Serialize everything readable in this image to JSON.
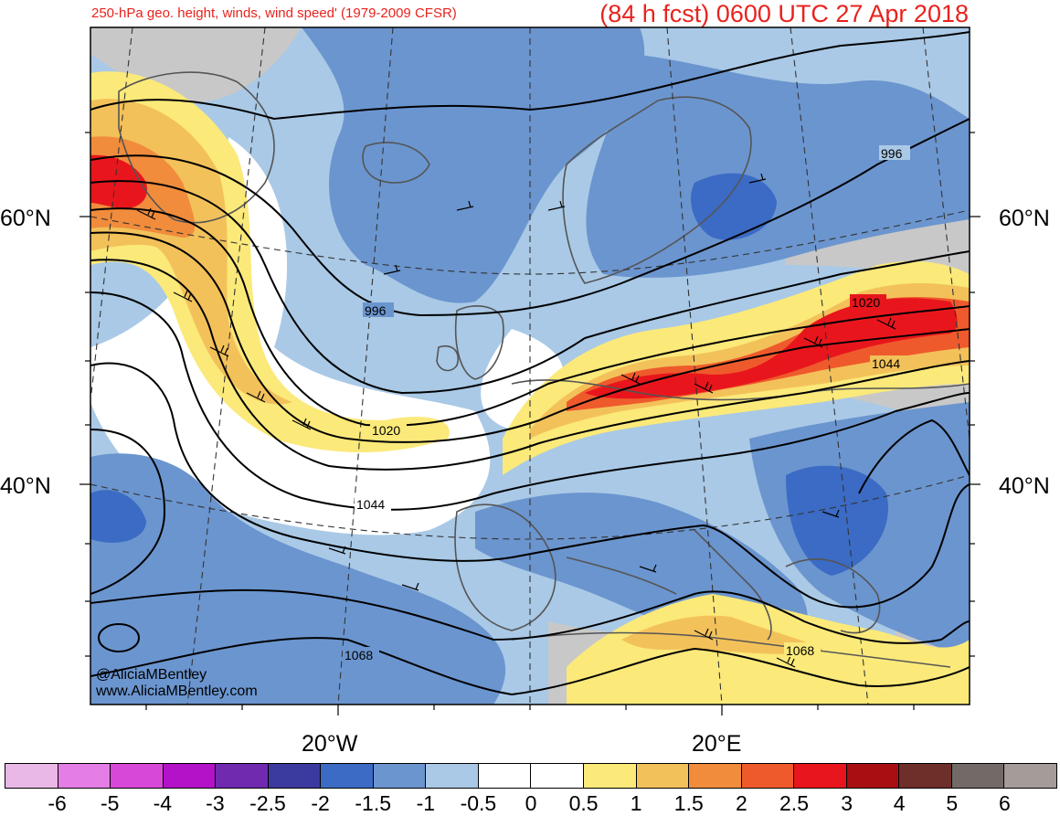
{
  "header": {
    "title": "250-hPa geo. height, winds, wind speed' (1979-2009 CFSR)",
    "forecast": "(84 h fcst) 0600 UTC 27 Apr 2018"
  },
  "map": {
    "lat_labels": [
      "60°N",
      "60°N",
      "40°N",
      "40°N"
    ],
    "lon_labels": [
      "20°W",
      "20°E"
    ],
    "contour_labels": [
      "996",
      "996",
      "1020",
      "1020",
      "1044",
      "1044",
      "1068",
      "1068"
    ],
    "credits": [
      "@AliciaMBentley",
      "www.AliciaMBentley.com"
    ]
  },
  "colorbar": {
    "ticks": [
      "-6",
      "-5",
      "-4",
      "-3",
      "-2.5",
      "-2",
      "-1.5",
      "-1",
      "-0.5",
      "0",
      "0.5",
      "1",
      "1.5",
      "2",
      "2.5",
      "3",
      "4",
      "5",
      "6"
    ],
    "colors": [
      "#eab8e6",
      "#e47de6",
      "#d848d8",
      "#b312c8",
      "#6f2ab0",
      "#3b3a9e",
      "#3b6bc4",
      "#6b95cf",
      "#a9c9e6",
      "#ffffff",
      "#ffffff",
      "#fbe97a",
      "#f3c15a",
      "#f08c3c",
      "#ef5a2c",
      "#e8161c",
      "#a80f12",
      "#6e2e2a",
      "#736a68",
      "#a59b99"
    ]
  },
  "legend_colors": {
    "jet": "#e8161c",
    "anomaly_neg": "#6b95cf",
    "gray": "#c8c8c8"
  }
}
